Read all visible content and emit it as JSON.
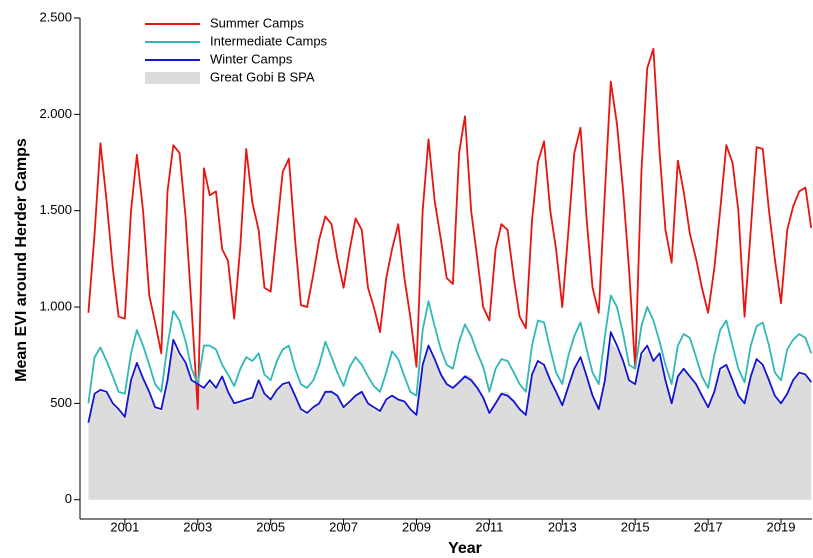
{
  "chart_data": {
    "type": "line",
    "x_label": "Year",
    "y_label": "Mean EVI around Herder Camps",
    "xlim": [
      1999.77,
      2019.85
    ],
    "ylim": [
      -100,
      2500
    ],
    "xticks": [
      2001,
      2003,
      2005,
      2007,
      2009,
      2011,
      2013,
      2015,
      2017,
      2019
    ],
    "yticks": [
      0,
      500,
      {
        "value": 1000,
        "label": "1.000"
      },
      {
        "value": 1500,
        "label": "1.500"
      },
      {
        "value": 2000,
        "label": "2.000"
      },
      {
        "value": 2500,
        "label": "2.500"
      }
    ],
    "x": [
      2000,
      2000.17,
      2000.33,
      2000.5,
      2000.67,
      2000.83,
      2001,
      2001.17,
      2001.33,
      2001.5,
      2001.67,
      2001.83,
      2002,
      2002.17,
      2002.33,
      2002.5,
      2002.67,
      2002.83,
      2003,
      2003.17,
      2003.33,
      2003.5,
      2003.67,
      2003.83,
      2004,
      2004.17,
      2004.33,
      2004.5,
      2004.67,
      2004.83,
      2005,
      2005.17,
      2005.33,
      2005.5,
      2005.67,
      2005.83,
      2006,
      2006.17,
      2006.33,
      2006.5,
      2006.67,
      2006.83,
      2007,
      2007.17,
      2007.33,
      2007.5,
      2007.67,
      2007.83,
      2008,
      2008.17,
      2008.33,
      2008.5,
      2008.67,
      2008.83,
      2009,
      2009.17,
      2009.33,
      2009.5,
      2009.67,
      2009.83,
      2010,
      2010.17,
      2010.33,
      2010.5,
      2010.67,
      2010.83,
      2011,
      2011.17,
      2011.33,
      2011.5,
      2011.67,
      2011.83,
      2012,
      2012.17,
      2012.33,
      2012.5,
      2012.67,
      2012.83,
      2013,
      2013.17,
      2013.33,
      2013.5,
      2013.67,
      2013.83,
      2014,
      2014.17,
      2014.33,
      2014.5,
      2014.67,
      2014.83,
      2015,
      2015.17,
      2015.33,
      2015.5,
      2015.67,
      2015.83,
      2016,
      2016.17,
      2016.33,
      2016.5,
      2016.67,
      2016.83,
      2017,
      2017.17,
      2017.33,
      2017.5,
      2017.67,
      2017.83,
      2018,
      2018.17,
      2018.33,
      2018.5,
      2018.67,
      2018.83,
      2019,
      2019.17,
      2019.33,
      2019.5,
      2019.67,
      2019.83
    ],
    "series": [
      {
        "name": "Summer Camps",
        "color": "#e8140f",
        "values": [
          970,
          1380,
          1850,
          1550,
          1200,
          950,
          940,
          1500,
          1790,
          1500,
          1060,
          920,
          760,
          1600,
          1840,
          1800,
          1460,
          1000,
          470,
          1720,
          1580,
          1600,
          1300,
          1240,
          940,
          1320,
          1820,
          1540,
          1400,
          1100,
          1080,
          1400,
          1700,
          1770,
          1350,
          1010,
          1000,
          1170,
          1350,
          1470,
          1430,
          1250,
          1100,
          1300,
          1460,
          1400,
          1100,
          1000,
          870,
          1150,
          1300,
          1430,
          1150,
          950,
          690,
          1500,
          1870,
          1550,
          1350,
          1150,
          1120,
          1800,
          1990,
          1500,
          1250,
          1000,
          930,
          1300,
          1430,
          1400,
          1150,
          950,
          890,
          1450,
          1750,
          1860,
          1500,
          1300,
          1000,
          1400,
          1800,
          1930,
          1450,
          1100,
          970,
          1600,
          2170,
          1950,
          1600,
          1200,
          680,
          1700,
          2240,
          2340,
          1800,
          1400,
          1230,
          1760,
          1600,
          1380,
          1250,
          1100,
          970,
          1200,
          1500,
          1840,
          1750,
          1500,
          950,
          1400,
          1830,
          1820,
          1500,
          1250,
          1020,
          1400,
          1520,
          1600,
          1620,
          1410
        ]
      },
      {
        "name": "Intermediate Camps",
        "color": "#30b8b8",
        "values": [
          500,
          740,
          790,
          720,
          640,
          560,
          550,
          760,
          880,
          800,
          700,
          600,
          560,
          800,
          980,
          930,
          820,
          680,
          600,
          800,
          800,
          780,
          700,
          650,
          590,
          680,
          740,
          720,
          760,
          650,
          620,
          720,
          780,
          800,
          680,
          600,
          580,
          620,
          700,
          820,
          740,
          660,
          590,
          690,
          740,
          700,
          640,
          590,
          560,
          660,
          770,
          730,
          640,
          560,
          540,
          880,
          1030,
          900,
          780,
          700,
          680,
          820,
          910,
          850,
          760,
          690,
          560,
          680,
          730,
          720,
          660,
          600,
          560,
          800,
          930,
          920,
          780,
          660,
          600,
          750,
          850,
          920,
          780,
          660,
          600,
          850,
          1060,
          1000,
          860,
          700,
          680,
          900,
          1000,
          930,
          820,
          700,
          600,
          800,
          860,
          840,
          740,
          640,
          580,
          750,
          880,
          930,
          800,
          680,
          610,
          800,
          900,
          920,
          800,
          660,
          620,
          780,
          830,
          860,
          840,
          760
        ]
      },
      {
        "name": "Winter Camps",
        "color": "#1414d2",
        "values": [
          400,
          550,
          570,
          560,
          500,
          470,
          430,
          620,
          710,
          630,
          560,
          480,
          470,
          620,
          830,
          760,
          710,
          620,
          600,
          580,
          620,
          580,
          640,
          560,
          500,
          510,
          520,
          530,
          620,
          550,
          520,
          570,
          600,
          610,
          540,
          470,
          450,
          480,
          500,
          560,
          560,
          540,
          480,
          510,
          540,
          560,
          500,
          480,
          460,
          520,
          540,
          520,
          510,
          470,
          440,
          700,
          800,
          730,
          650,
          600,
          580,
          610,
          640,
          620,
          580,
          530,
          450,
          500,
          550,
          540,
          510,
          470,
          440,
          650,
          720,
          700,
          620,
          560,
          490,
          590,
          680,
          740,
          640,
          540,
          470,
          620,
          870,
          800,
          720,
          620,
          600,
          760,
          800,
          720,
          760,
          620,
          500,
          640,
          680,
          640,
          600,
          540,
          480,
          560,
          680,
          700,
          620,
          540,
          500,
          640,
          730,
          700,
          620,
          540,
          500,
          550,
          620,
          660,
          650,
          610
        ]
      },
      {
        "name": "Great Gobi B SPA",
        "color": "#dcdcdc",
        "area": true,
        "values": [
          390,
          540,
          560,
          550,
          490,
          460,
          420,
          600,
          690,
          620,
          550,
          470,
          460,
          610,
          800,
          740,
          700,
          610,
          590,
          570,
          600,
          570,
          620,
          550,
          490,
          500,
          510,
          520,
          600,
          540,
          510,
          560,
          590,
          600,
          530,
          460,
          440,
          470,
          500,
          560,
          570,
          540,
          470,
          500,
          530,
          560,
          500,
          470,
          450,
          510,
          530,
          520,
          500,
          460,
          430,
          680,
          780,
          720,
          650,
          600,
          570,
          610,
          650,
          640,
          590,
          530,
          440,
          500,
          560,
          560,
          520,
          470,
          430,
          640,
          700,
          690,
          610,
          550,
          480,
          580,
          670,
          720,
          630,
          530,
          460,
          610,
          820,
          780,
          710,
          610,
          600,
          740,
          780,
          720,
          740,
          610,
          490,
          630,
          670,
          640,
          600,
          530,
          470,
          550,
          660,
          690,
          610,
          530,
          490,
          630,
          710,
          690,
          610,
          530,
          490,
          540,
          610,
          650,
          640,
          600
        ]
      }
    ]
  }
}
